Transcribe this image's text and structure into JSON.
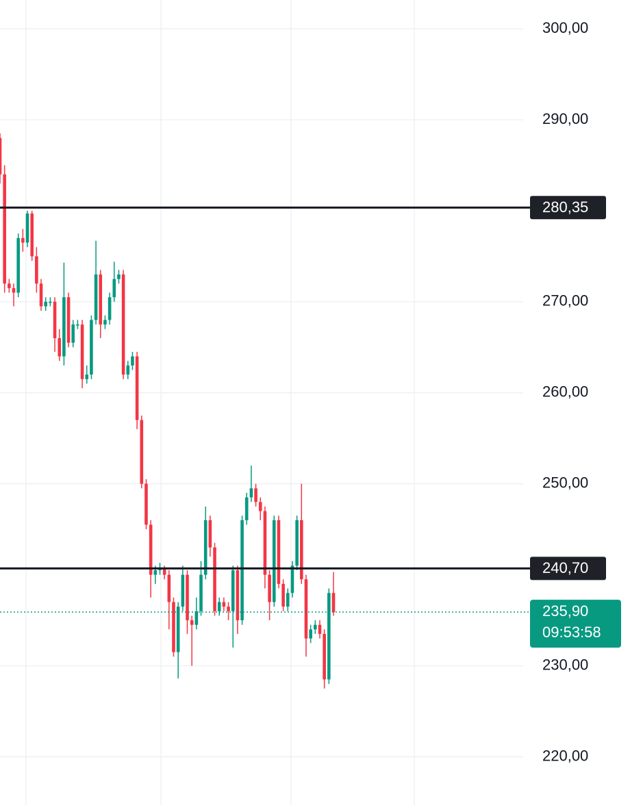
{
  "chart_data": {
    "type": "candlestick",
    "open": [
      288,
      284,
      272,
      271.5,
      271,
      277,
      276.5,
      279.7,
      275,
      272,
      269.5,
      270,
      270,
      266,
      264,
      270.5,
      265.5,
      267.5,
      267.5,
      261.5,
      262,
      268,
      273,
      267.5,
      268,
      270.5,
      272.5,
      273,
      262,
      263,
      264,
      257,
      250,
      245.5,
      240,
      240.5,
      240.7,
      240,
      237,
      231.5,
      236.5,
      240,
      235,
      234.5,
      236,
      240,
      246,
      243,
      236,
      237,
      236.5,
      236,
      240.5,
      235,
      246,
      248.5,
      249.5,
      248,
      247,
      240,
      237,
      246,
      239,
      236.5,
      238,
      241,
      246,
      239.5,
      233,
      234,
      234.5,
      233.5,
      228.5,
      238
    ],
    "high": [
      288.5,
      285,
      272.5,
      272,
      277.5,
      278,
      280,
      280,
      276,
      272.5,
      270.5,
      270.5,
      270.5,
      267,
      274.3,
      271,
      268,
      268,
      268,
      263,
      268.5,
      276.7,
      273.5,
      268.5,
      271,
      274.4,
      273.5,
      273.5,
      263.5,
      264.5,
      264.5,
      257.5,
      250.5,
      246,
      241,
      241.3,
      241,
      240.5,
      237.5,
      237,
      241,
      240.5,
      235.5,
      237.5,
      241.5,
      247.5,
      246.5,
      243.5,
      237.5,
      237.5,
      237,
      241,
      241,
      246.5,
      249,
      252,
      250,
      248.5,
      247.5,
      240.5,
      246.5,
      246.5,
      239.5,
      238.5,
      241.5,
      246.5,
      250,
      240,
      234.5,
      235,
      235,
      234,
      238.5,
      240.3
    ],
    "low": [
      283,
      271,
      271,
      269.5,
      270.5,
      275.5,
      276,
      274.5,
      271,
      269,
      269,
      269.5,
      264.5,
      263.5,
      263,
      265,
      265,
      267,
      260.5,
      261,
      261.5,
      267.5,
      266,
      267,
      267.5,
      270,
      272,
      261.5,
      261.5,
      262.5,
      256,
      249.5,
      245,
      237.5,
      239,
      240,
      239.5,
      234,
      231,
      228.6,
      236,
      233.5,
      230,
      234,
      235.5,
      239.5,
      242,
      235.5,
      235.5,
      236,
      235,
      232,
      233.5,
      234.5,
      245.5,
      248,
      247.5,
      246,
      238.5,
      235,
      236.5,
      238.5,
      236,
      236,
      237.5,
      240.5,
      239,
      231,
      232.5,
      233.5,
      233,
      227.5,
      228,
      235.5
    ],
    "close": [
      284,
      272,
      271.5,
      271,
      277,
      276.5,
      279.7,
      275,
      272,
      269.5,
      270,
      270,
      266,
      264,
      270.5,
      265.5,
      267.5,
      267.5,
      261.5,
      262,
      268,
      273,
      267.5,
      268,
      270.5,
      272.5,
      273,
      262,
      263,
      264,
      257,
      250,
      245.5,
      240,
      240.5,
      240.7,
      240,
      237,
      231.5,
      236.5,
      240,
      235,
      234.5,
      236,
      240,
      246,
      243,
      236,
      237,
      236.5,
      236,
      240.5,
      235,
      246,
      248.5,
      249.5,
      248,
      247,
      240,
      237,
      246,
      239,
      236.5,
      238,
      241,
      246,
      239.5,
      233,
      234,
      234.5,
      233.5,
      228.5,
      238,
      235.9
    ],
    "up_color": "#089981",
    "down_color": "#f23645",
    "ylim": [
      214.7,
      303.16
    ],
    "yticks": [
      {
        "value": 300,
        "label": "300,00"
      },
      {
        "value": 290,
        "label": "290,00"
      },
      {
        "value": 270,
        "label": "270,00"
      },
      {
        "value": 260,
        "label": "260,00"
      },
      {
        "value": 250,
        "label": "250,00"
      },
      {
        "value": 230,
        "label": "230,00"
      },
      {
        "value": 220,
        "label": "220,00"
      }
    ],
    "grid": true,
    "price_lines": [
      {
        "value": 280.35,
        "label": "280,35"
      },
      {
        "value": 240.7,
        "label": "240,70"
      }
    ],
    "last_price": {
      "value": 235.9,
      "label": "235,90",
      "countdown": "09:53:58"
    }
  }
}
